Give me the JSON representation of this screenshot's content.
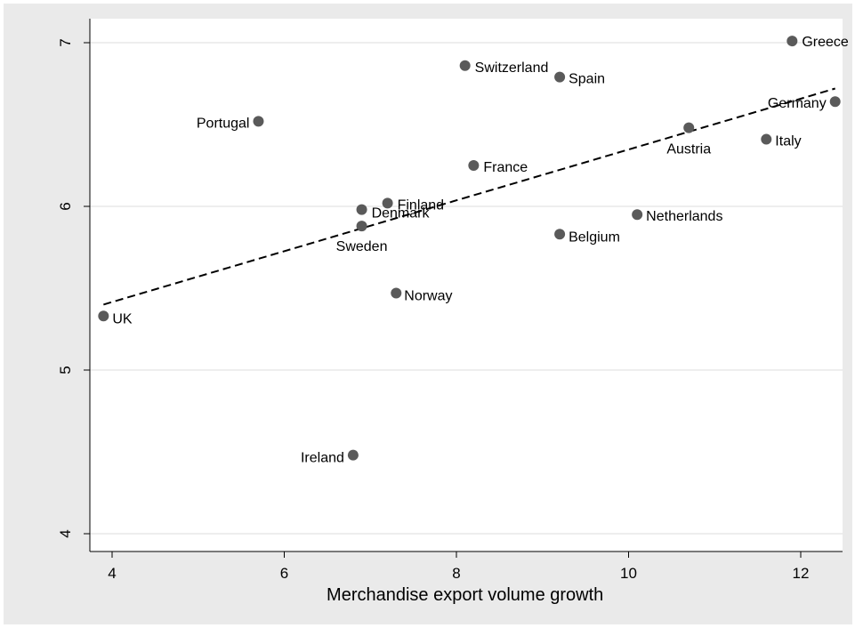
{
  "chart_data": {
    "type": "scatter",
    "title": "",
    "xlabel": "Merchandise export volume growth",
    "ylabel": "",
    "xlim": [
      3.8,
      12.6
    ],
    "ylim": [
      3.9,
      7.15
    ],
    "xticks": [
      4,
      6,
      8,
      10,
      12
    ],
    "yticks": [
      4,
      5,
      6,
      7
    ],
    "grid": "horizontal",
    "colors": {
      "plot_background": "#ffffff",
      "outer_background": "#eaeaea",
      "gridline": "#e8e8e8",
      "marker": "#5a5a5a",
      "fit_line": "#000000"
    },
    "points": [
      {
        "label": "Greece",
        "x": 11.9,
        "y": 7.01
      },
      {
        "label": "Switzerland",
        "x": 8.1,
        "y": 6.86
      },
      {
        "label": "Spain",
        "x": 9.2,
        "y": 6.79
      },
      {
        "label": "Germany",
        "x": 12.4,
        "y": 6.64
      },
      {
        "label": "Portugal",
        "x": 5.7,
        "y": 6.52
      },
      {
        "label": "Austria",
        "x": 10.7,
        "y": 6.48
      },
      {
        "label": "Italy",
        "x": 11.6,
        "y": 6.41
      },
      {
        "label": "France",
        "x": 8.2,
        "y": 6.25
      },
      {
        "label": "Finland",
        "x": 7.2,
        "y": 6.02
      },
      {
        "label": "Denmark",
        "x": 6.9,
        "y": 5.98
      },
      {
        "label": "Netherlands",
        "x": 10.1,
        "y": 5.95
      },
      {
        "label": "Sweden",
        "x": 6.9,
        "y": 5.88
      },
      {
        "label": "Belgium",
        "x": 9.2,
        "y": 5.83
      },
      {
        "label": "Norway",
        "x": 7.3,
        "y": 5.47
      },
      {
        "label": "UK",
        "x": 3.9,
        "y": 5.33
      },
      {
        "label": "Ireland",
        "x": 6.8,
        "y": 4.48
      }
    ],
    "fit_line": {
      "x": [
        3.9,
        12.4
      ],
      "y": [
        5.4,
        6.72
      ]
    }
  }
}
